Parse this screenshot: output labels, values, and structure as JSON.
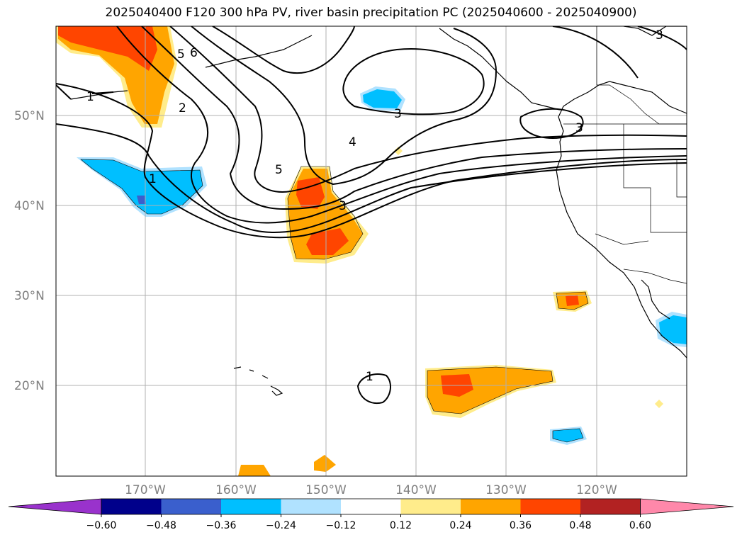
{
  "title": "2025040400 F120 300 hPa PV, river basin precipitation PC (2025040600 - 2025040900)",
  "map": {
    "region": "North Pacific and western North America",
    "lat_labels": [
      "50°N",
      "40°N",
      "30°N",
      "20°N"
    ],
    "lon_labels": [
      "170°W",
      "160°W",
      "150°W",
      "140°W",
      "130°W",
      "120°W"
    ],
    "gridlines": true,
    "contour_labels": [
      "1",
      "2",
      "5",
      "6",
      "1",
      "5",
      "4",
      "3",
      "3",
      "1",
      "3",
      "3"
    ]
  },
  "colorbar": {
    "ticks": [
      "−0.60",
      "−0.48",
      "−0.36",
      "−0.24",
      "−0.12",
      "0.12",
      "0.24",
      "0.36",
      "0.48",
      "0.60"
    ],
    "colors": [
      "#9932cc",
      "#00008b",
      "#3a5fcd",
      "#00bfff",
      "#b0e2ff",
      "#ffffff",
      "#ffec8b",
      "#ffa500",
      "#ff4500",
      "#b22222",
      "#ff88aa"
    ],
    "extend": "both"
  }
}
